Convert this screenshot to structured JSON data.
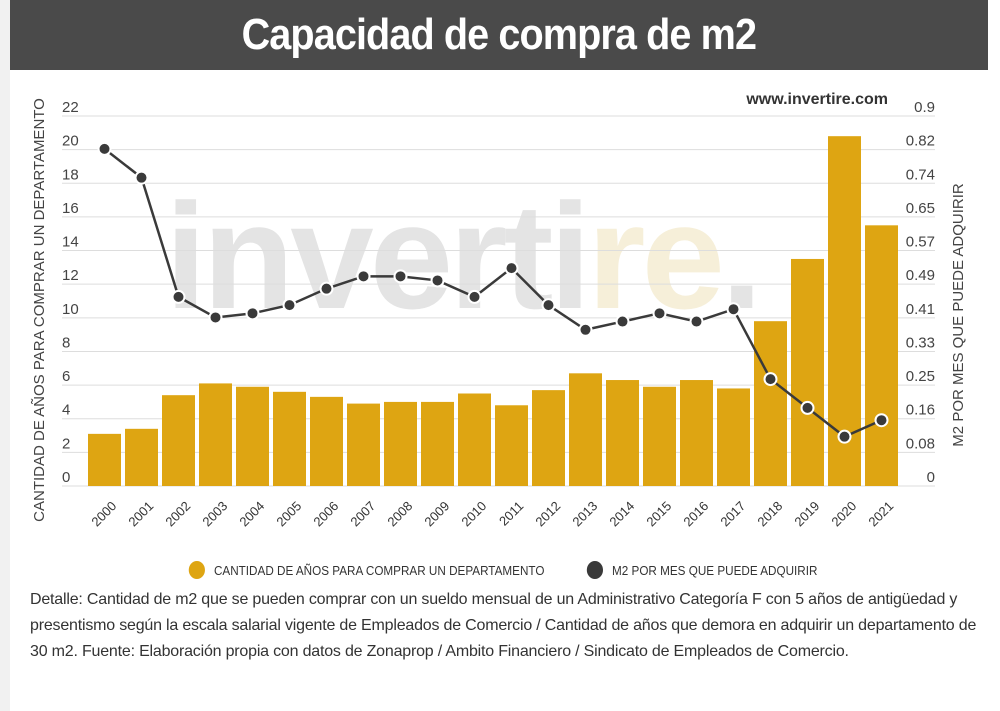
{
  "header": {
    "title": "Capacidad de compra de m2"
  },
  "source_url": "www.invertire.com",
  "watermark": {
    "part1": "inverti",
    "part2": "re",
    "part3": "."
  },
  "colors": {
    "bars": "#dea512",
    "line": "#3a3a3a",
    "header": "#4a4a4a",
    "grid": "#dddddd"
  },
  "chart_data": {
    "type": "bar+line",
    "title": "Capacidad de compra de m2",
    "categories": [
      "2000",
      "2001",
      "2002",
      "2003",
      "2004",
      "2005",
      "2006",
      "2007",
      "2008",
      "2009",
      "2010",
      "2011",
      "2012",
      "2013",
      "2014",
      "2015",
      "2016",
      "2017",
      "2018",
      "2019",
      "2020",
      "2021"
    ],
    "series": [
      {
        "name": "CANTIDAD DE AÑOS PARA COMPRAR UN DEPARTAMENTO",
        "type": "bar",
        "axis": "left",
        "values": [
          3.1,
          3.4,
          5.4,
          6.1,
          5.9,
          5.6,
          5.3,
          4.9,
          5.0,
          5.0,
          5.5,
          4.8,
          5.7,
          6.7,
          6.3,
          5.9,
          6.3,
          5.8,
          9.8,
          13.5,
          20.8,
          15.5
        ]
      },
      {
        "name": "M2 POR MES QUE PUEDE ADQUIRIR",
        "type": "line",
        "axis": "right",
        "values": [
          0.82,
          0.75,
          0.46,
          0.41,
          0.42,
          0.44,
          0.48,
          0.51,
          0.51,
          0.5,
          0.46,
          0.53,
          0.44,
          0.38,
          0.4,
          0.42,
          0.4,
          0.43,
          0.26,
          0.19,
          0.12,
          0.16
        ]
      }
    ],
    "ylabel_left": "CANTIDAD DE AÑOS PARA COMPRAR UN DEPARTAMENTO",
    "ylabel_right": "M2 POR MES QUE PUEDE ADQUIRIR",
    "ylim_left": [
      0,
      22
    ],
    "ylim_right": [
      0,
      0.9
    ],
    "yticks_left": [
      "0",
      "2",
      "4",
      "6",
      "8",
      "10",
      "12",
      "14",
      "16",
      "18",
      "20",
      "22"
    ],
    "yticks_right": [
      "0",
      "0.08",
      "0.16",
      "0.25",
      "0.33",
      "0.41",
      "0.49",
      "0.57",
      "0.65",
      "0.74",
      "0.82",
      "0.9"
    ],
    "grid": true,
    "legend": "bottom"
  },
  "detail": "Detalle: Cantidad de m2 que se pueden comprar con un sueldo mensual de un Administrativo Categoría F con 5 años de antigüedad y presentismo según la escala salarial vigente de Empleados de Comercio / Cantidad de años que demora en adquirir un departamento de 30 m2. Fuente: Elaboración propia con datos de Zonaprop / Ambito Financiero / Sindicato de Empleados de Comercio."
}
